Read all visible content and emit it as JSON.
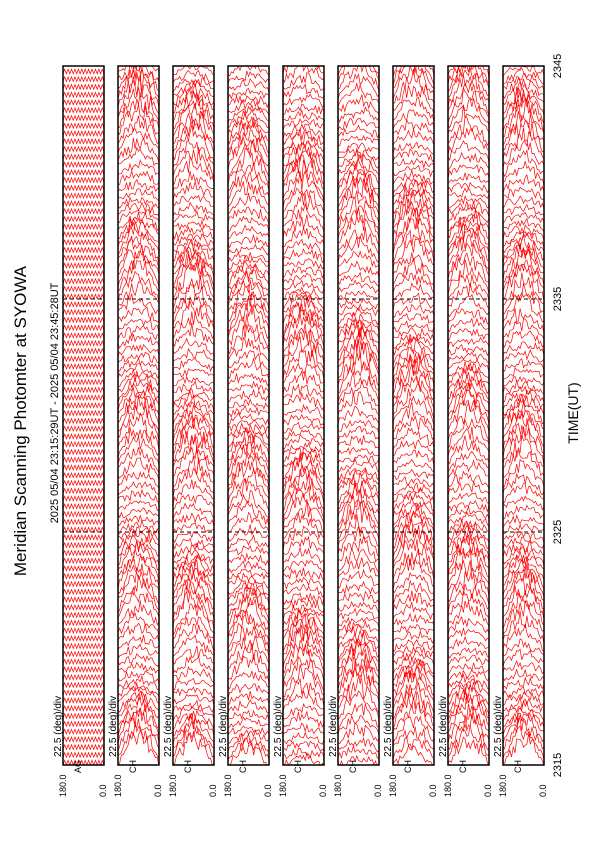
{
  "chart_data": {
    "type": "line",
    "title": "Meridian Scanning Photomter at SYOWA",
    "time_range": "2025 05/04 23:15:29UT - 2025 05/04 23:45:28UT",
    "xlabel": "TIME(UT)",
    "x_ticks": [
      "2315",
      "2325",
      "2335",
      "2345"
    ],
    "xlim": [
      2315,
      2345
    ],
    "scale_label": "22.5 (deg)/div",
    "y_ticks": [
      "180.0",
      "0.0"
    ],
    "ylim": [
      0,
      180
    ],
    "line_color": "#ff0000",
    "panels": [
      {
        "channel": "AG"
      },
      {
        "channel": "CH"
      },
      {
        "channel": "CH"
      },
      {
        "channel": "CH"
      },
      {
        "channel": "CH"
      },
      {
        "channel": "CH"
      },
      {
        "channel": "CH"
      },
      {
        "channel": "CH"
      },
      {
        "channel": "CH"
      }
    ]
  }
}
